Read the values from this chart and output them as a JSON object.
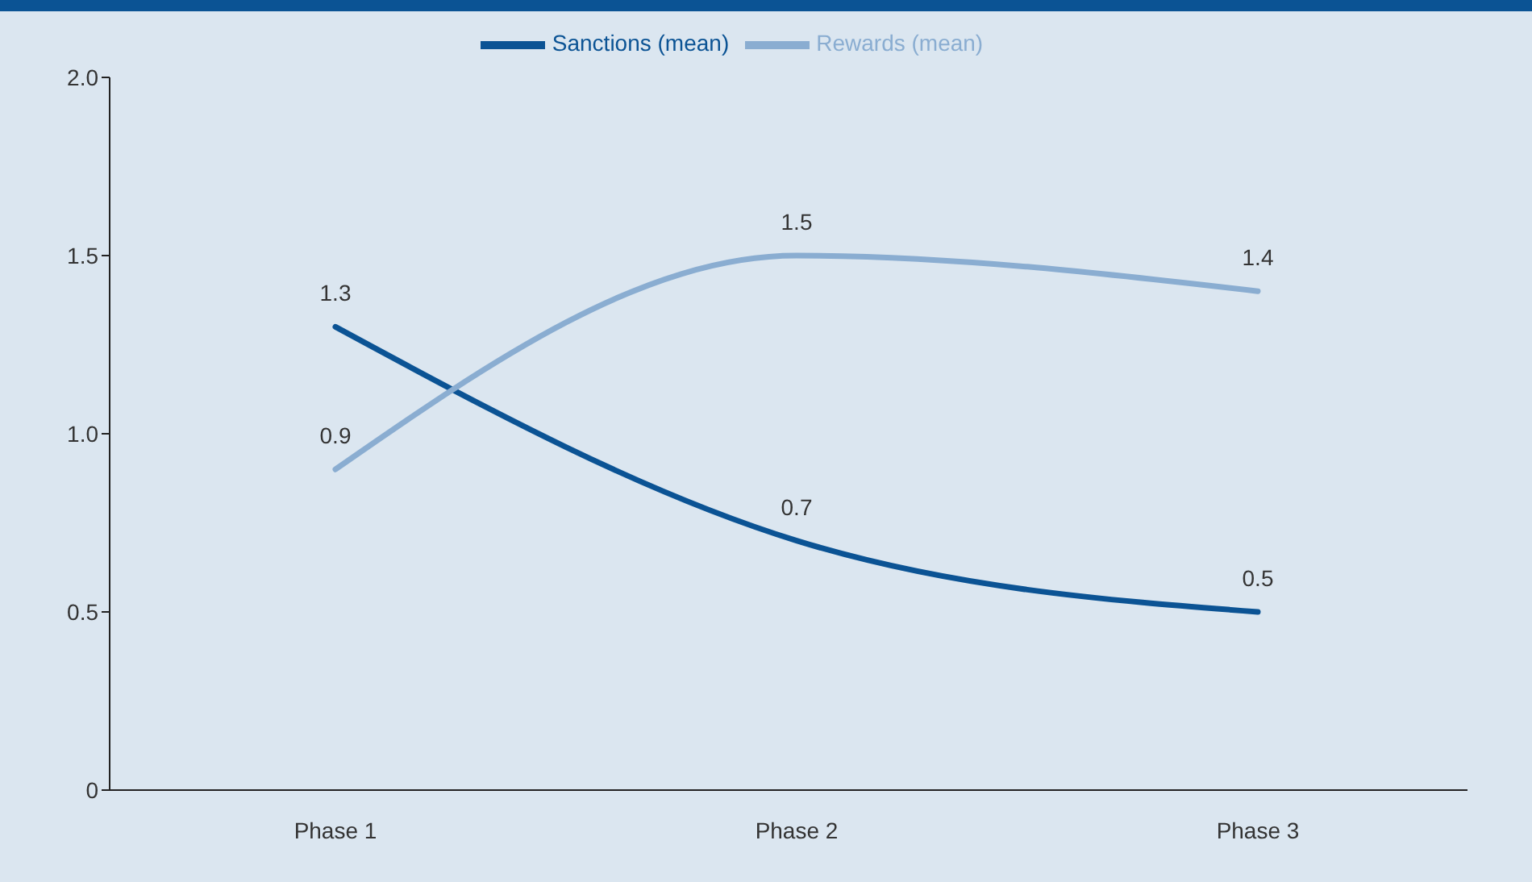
{
  "chart_data": {
    "type": "line",
    "categories": [
      "Phase 1",
      "Phase 2",
      "Phase 3"
    ],
    "series": [
      {
        "name": "Sanctions (mean)",
        "color": "#0b5394",
        "values": [
          1.3,
          0.7,
          0.5
        ]
      },
      {
        "name": "Rewards (mean)",
        "color": "#8aadd1",
        "values": [
          0.9,
          1.5,
          1.4
        ]
      }
    ],
    "ylim": [
      0,
      2
    ],
    "yticks": [
      0,
      0.5,
      {
        "value": 1,
        "label": "1.0"
      },
      1.5,
      {
        "value": 2,
        "label": "2.0"
      }
    ],
    "grid": false,
    "legend": "top",
    "marker": "none",
    "line_style": "solid",
    "data_labels": true
  }
}
